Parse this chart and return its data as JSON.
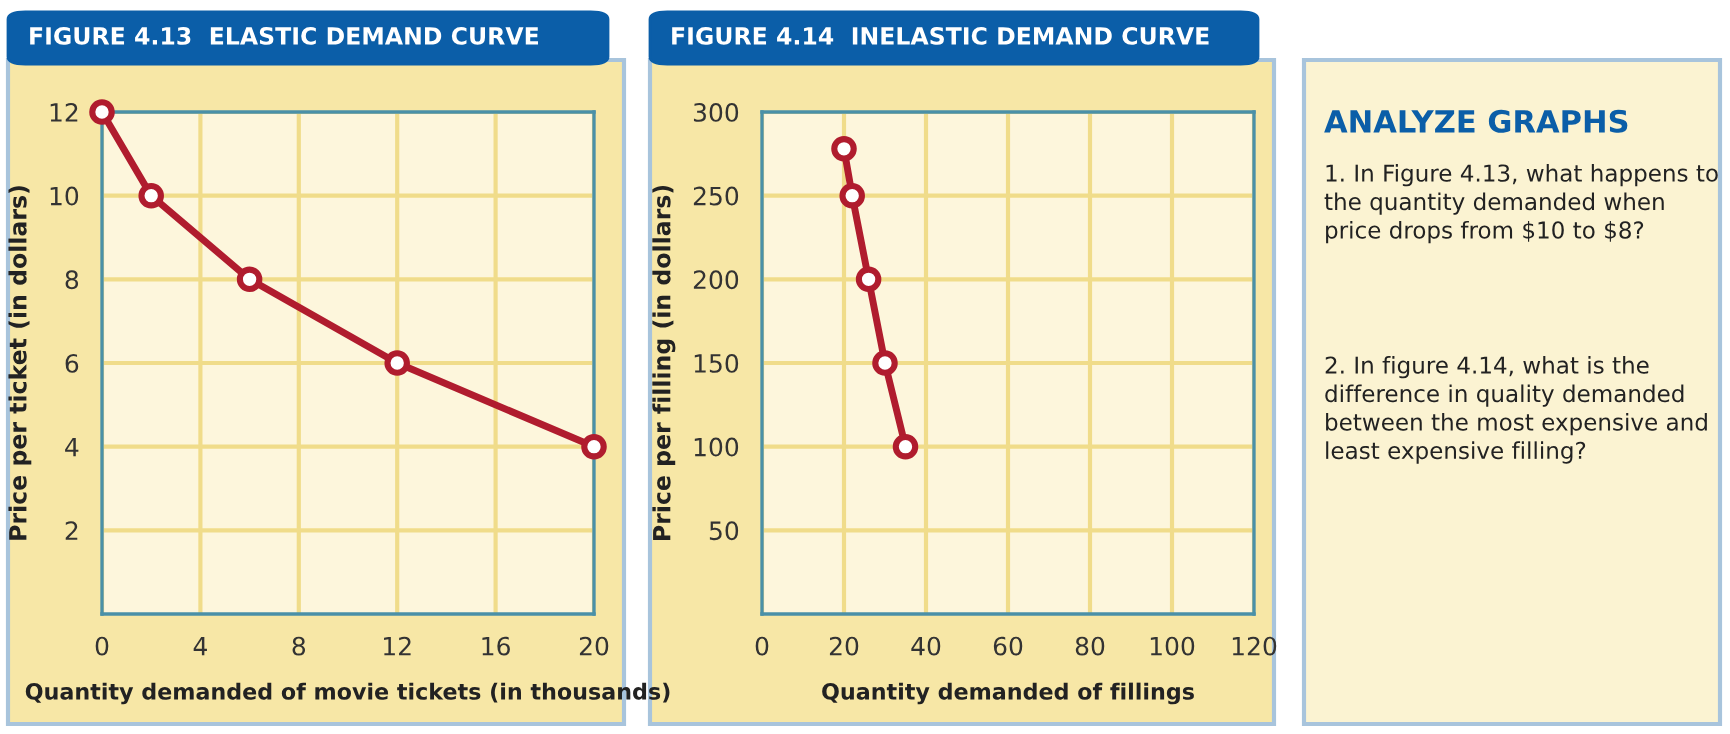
{
  "chart_data": [
    {
      "type": "line",
      "title": "FIGURE 4.13  ELASTIC DEMAND CURVE",
      "xlabel": "Quantity demanded of movie tickets (in thousands)",
      "ylabel": "Price per ticket (in dollars)",
      "x": [
        0,
        2,
        6,
        12,
        20
      ],
      "series": [
        {
          "color": "#b01c2e",
          "values": [
            12,
            10,
            8,
            6,
            4
          ]
        }
      ],
      "xlim": [
        0,
        20
      ],
      "xticks": [
        0,
        4,
        8,
        12,
        16,
        20
      ],
      "ylim": [
        0,
        12
      ],
      "yticks": [
        2,
        4,
        6,
        8,
        10,
        12
      ],
      "grid": true,
      "marker": "circle",
      "line_style": "solid",
      "legend": false
    },
    {
      "type": "line",
      "title": "FIGURE 4.14  INELASTIC DEMAND CURVE",
      "xlabel": "Quantity demanded of fillings",
      "ylabel": "Price per filling (in dollars)",
      "x": [
        20,
        22,
        26,
        30,
        35
      ],
      "series": [
        {
          "color": "#b01c2e",
          "values": [
            278,
            250,
            200,
            150,
            100
          ]
        }
      ],
      "xlim": [
        0,
        120
      ],
      "xticks": [
        0,
        20,
        40,
        60,
        80,
        100,
        120
      ],
      "ylim": [
        0,
        300
      ],
      "yticks": [
        50,
        100,
        150,
        200,
        250,
        300
      ],
      "grid": true,
      "marker": "circle",
      "line_style": "solid",
      "legend": false
    },
    {
      "type": "other",
      "title": "ANALYZE GRAPHS",
      "annotations": [
        "1. In Figure 4.13, what happens to the quantity demanded when price drops from $10 to $8?",
        "2. In figure 4.14, what is the difference in quality demanded between the most expensive and least expensive filling?"
      ]
    }
  ]
}
